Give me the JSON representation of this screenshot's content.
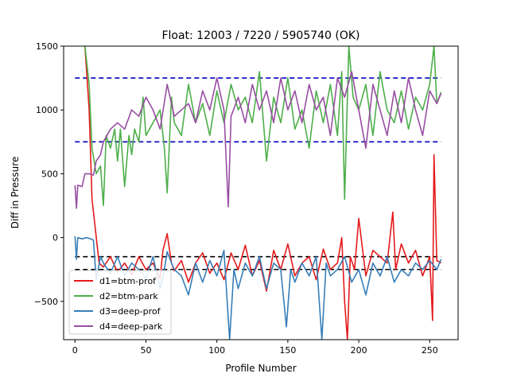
{
  "chart_data": {
    "type": "line",
    "title": "Float: 12003 / 7220 / 5905740 (OK)",
    "xlabel": "Profile Number",
    "ylabel": "Diff in Pressure",
    "xlim": [
      -8,
      270
    ],
    "ylim": [
      -800,
      1500
    ],
    "xticks": [
      0,
      50,
      100,
      150,
      200,
      250
    ],
    "yticks": [
      -500,
      0,
      500,
      1000,
      1500
    ],
    "grid": false,
    "legend_position": "lower-left",
    "reference_lines": [
      {
        "y": 1250,
        "color": "#0000bb",
        "style": "dashed"
      },
      {
        "y": 750,
        "color": "#0000bb",
        "style": "dashed"
      },
      {
        "y": -150,
        "color": "#000000",
        "style": "dashed"
      },
      {
        "y": -250,
        "color": "#000000",
        "style": "dashed"
      }
    ],
    "series": [
      {
        "name": "d1=btm-prof",
        "color": "#e41a1c",
        "points": [
          [
            7,
            1500
          ],
          [
            10,
            1000
          ],
          [
            12,
            300
          ],
          [
            14,
            100
          ],
          [
            17,
            -200
          ],
          [
            20,
            -230
          ],
          [
            25,
            -150
          ],
          [
            30,
            -270
          ],
          [
            35,
            -200
          ],
          [
            40,
            -290
          ],
          [
            45,
            -150
          ],
          [
            50,
            -250
          ],
          [
            55,
            -200
          ],
          [
            60,
            -320
          ],
          [
            62,
            -100
          ],
          [
            65,
            30
          ],
          [
            68,
            -200
          ],
          [
            70,
            -260
          ],
          [
            75,
            -180
          ],
          [
            80,
            -350
          ],
          [
            85,
            -200
          ],
          [
            90,
            -120
          ],
          [
            95,
            -280
          ],
          [
            100,
            -200
          ],
          [
            105,
            -330
          ],
          [
            110,
            -120
          ],
          [
            115,
            -250
          ],
          [
            120,
            -60
          ],
          [
            125,
            -300
          ],
          [
            130,
            -180
          ],
          [
            135,
            -420
          ],
          [
            140,
            -100
          ],
          [
            145,
            -250
          ],
          [
            150,
            -50
          ],
          [
            155,
            -300
          ],
          [
            160,
            -200
          ],
          [
            165,
            -150
          ],
          [
            170,
            -330
          ],
          [
            175,
            -90
          ],
          [
            180,
            -250
          ],
          [
            185,
            -200
          ],
          [
            188,
            0
          ],
          [
            190,
            -500
          ],
          [
            192,
            -800
          ],
          [
            194,
            -150
          ],
          [
            197,
            -250
          ],
          [
            200,
            150
          ],
          [
            205,
            -300
          ],
          [
            210,
            -100
          ],
          [
            215,
            -150
          ],
          [
            220,
            -200
          ],
          [
            224,
            200
          ],
          [
            226,
            -250
          ],
          [
            230,
            -50
          ],
          [
            235,
            -200
          ],
          [
            240,
            -100
          ],
          [
            245,
            -300
          ],
          [
            250,
            -150
          ],
          [
            252,
            -650
          ],
          [
            253,
            650
          ],
          [
            255,
            -180
          ],
          [
            258,
            -200
          ]
        ]
      },
      {
        "name": "d2=btm-park",
        "color": "#4daf4a",
        "points": [
          [
            7,
            1500
          ],
          [
            10,
            1200
          ],
          [
            12,
            700
          ],
          [
            15,
            500
          ],
          [
            18,
            560
          ],
          [
            20,
            250
          ],
          [
            22,
            800
          ],
          [
            25,
            700
          ],
          [
            28,
            850
          ],
          [
            30,
            600
          ],
          [
            32,
            850
          ],
          [
            35,
            400
          ],
          [
            38,
            800
          ],
          [
            40,
            650
          ],
          [
            42,
            850
          ],
          [
            45,
            750
          ],
          [
            48,
            1100
          ],
          [
            50,
            800
          ],
          [
            55,
            900
          ],
          [
            60,
            1000
          ],
          [
            63,
            700
          ],
          [
            65,
            350
          ],
          [
            68,
            1100
          ],
          [
            70,
            900
          ],
          [
            75,
            800
          ],
          [
            80,
            1200
          ],
          [
            85,
            900
          ],
          [
            90,
            1050
          ],
          [
            95,
            800
          ],
          [
            100,
            1150
          ],
          [
            105,
            900
          ],
          [
            110,
            1200
          ],
          [
            115,
            1000
          ],
          [
            120,
            1100
          ],
          [
            125,
            900
          ],
          [
            130,
            1300
          ],
          [
            135,
            600
          ],
          [
            140,
            1100
          ],
          [
            145,
            900
          ],
          [
            150,
            1250
          ],
          [
            155,
            850
          ],
          [
            160,
            1000
          ],
          [
            165,
            700
          ],
          [
            170,
            1150
          ],
          [
            175,
            900
          ],
          [
            180,
            1200
          ],
          [
            185,
            800
          ],
          [
            188,
            1300
          ],
          [
            190,
            300
          ],
          [
            193,
            1500
          ],
          [
            196,
            1100
          ],
          [
            200,
            1000
          ],
          [
            205,
            1200
          ],
          [
            210,
            800
          ],
          [
            215,
            1300
          ],
          [
            220,
            1000
          ],
          [
            225,
            900
          ],
          [
            230,
            1150
          ],
          [
            235,
            850
          ],
          [
            240,
            1100
          ],
          [
            245,
            1000
          ],
          [
            250,
            1200
          ],
          [
            253,
            1500
          ],
          [
            255,
            1050
          ],
          [
            258,
            1140
          ]
        ]
      },
      {
        "name": "d3=deep-prof",
        "color": "#377eb8",
        "points": [
          [
            0,
            10
          ],
          [
            1,
            -170
          ],
          [
            2,
            0
          ],
          [
            5,
            -10
          ],
          [
            8,
            0
          ],
          [
            10,
            -5
          ],
          [
            13,
            -20
          ],
          [
            15,
            -330
          ],
          [
            18,
            -150
          ],
          [
            20,
            -200
          ],
          [
            25,
            -280
          ],
          [
            30,
            -150
          ],
          [
            35,
            -300
          ],
          [
            40,
            -200
          ],
          [
            45,
            -250
          ],
          [
            50,
            -320
          ],
          [
            55,
            -150
          ],
          [
            60,
            -400
          ],
          [
            63,
            -250
          ],
          [
            65,
            -110
          ],
          [
            68,
            -200
          ],
          [
            70,
            -250
          ],
          [
            75,
            -300
          ],
          [
            80,
            -450
          ],
          [
            85,
            -200
          ],
          [
            90,
            -350
          ],
          [
            95,
            -180
          ],
          [
            100,
            -300
          ],
          [
            105,
            -100
          ],
          [
            109,
            -800
          ],
          [
            112,
            -250
          ],
          [
            115,
            -400
          ],
          [
            120,
            -200
          ],
          [
            125,
            -300
          ],
          [
            130,
            -150
          ],
          [
            135,
            -400
          ],
          [
            140,
            -200
          ],
          [
            145,
            -250
          ],
          [
            149,
            -700
          ],
          [
            152,
            -250
          ],
          [
            155,
            -350
          ],
          [
            160,
            -200
          ],
          [
            165,
            -300
          ],
          [
            170,
            -150
          ],
          [
            174,
            -800
          ],
          [
            177,
            -200
          ],
          [
            180,
            -300
          ],
          [
            185,
            -250
          ],
          [
            190,
            -150
          ],
          [
            195,
            -350
          ],
          [
            200,
            -250
          ],
          [
            205,
            -450
          ],
          [
            210,
            -200
          ],
          [
            215,
            -300
          ],
          [
            220,
            -150
          ],
          [
            225,
            -350
          ],
          [
            230,
            -250
          ],
          [
            235,
            -300
          ],
          [
            240,
            -200
          ],
          [
            245,
            -250
          ],
          [
            250,
            -180
          ],
          [
            255,
            -250
          ],
          [
            258,
            -170
          ]
        ]
      },
      {
        "name": "d4=deep-park",
        "color": "#984ea3",
        "points": [
          [
            0,
            410
          ],
          [
            1,
            230
          ],
          [
            2,
            410
          ],
          [
            5,
            400
          ],
          [
            7,
            500
          ],
          [
            10,
            500
          ],
          [
            13,
            490
          ],
          [
            15,
            600
          ],
          [
            18,
            650
          ],
          [
            20,
            750
          ],
          [
            25,
            850
          ],
          [
            30,
            900
          ],
          [
            35,
            850
          ],
          [
            40,
            1000
          ],
          [
            45,
            950
          ],
          [
            50,
            1100
          ],
          [
            55,
            1000
          ],
          [
            60,
            850
          ],
          [
            65,
            1200
          ],
          [
            70,
            950
          ],
          [
            75,
            1000
          ],
          [
            80,
            1050
          ],
          [
            85,
            900
          ],
          [
            90,
            1150
          ],
          [
            95,
            1000
          ],
          [
            100,
            1250
          ],
          [
            105,
            1000
          ],
          [
            108,
            240
          ],
          [
            110,
            950
          ],
          [
            115,
            1100
          ],
          [
            120,
            900
          ],
          [
            125,
            1200
          ],
          [
            130,
            1000
          ],
          [
            135,
            1150
          ],
          [
            140,
            900
          ],
          [
            145,
            1250
          ],
          [
            150,
            1000
          ],
          [
            155,
            1150
          ],
          [
            160,
            900
          ],
          [
            165,
            1200
          ],
          [
            170,
            1000
          ],
          [
            175,
            1100
          ],
          [
            180,
            800
          ],
          [
            185,
            1250
          ],
          [
            190,
            1100
          ],
          [
            195,
            1300
          ],
          [
            200,
            1000
          ],
          [
            205,
            700
          ],
          [
            210,
            1200
          ],
          [
            215,
            1000
          ],
          [
            220,
            800
          ],
          [
            225,
            1150
          ],
          [
            230,
            900
          ],
          [
            235,
            1250
          ],
          [
            240,
            1000
          ],
          [
            245,
            800
          ],
          [
            250,
            1150
          ],
          [
            255,
            1050
          ],
          [
            258,
            1130
          ]
        ]
      }
    ]
  }
}
